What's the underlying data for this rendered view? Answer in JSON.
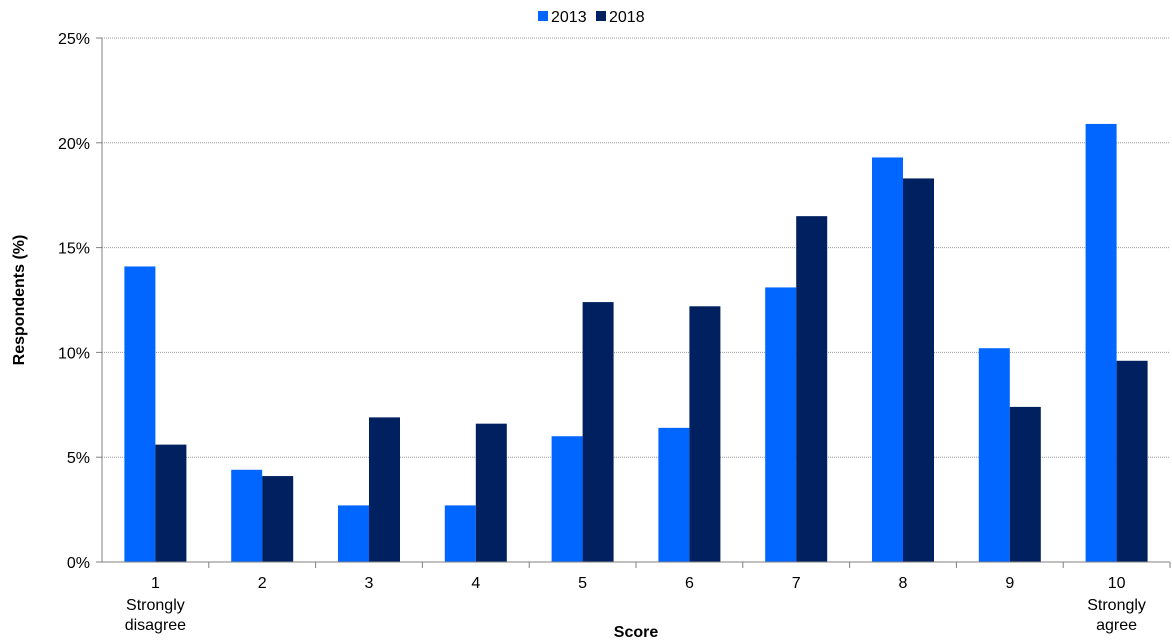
{
  "chart_data": {
    "type": "bar",
    "title": "",
    "xlabel": "Score",
    "ylabel": "Respondents (%)",
    "ylim": [
      0,
      25
    ],
    "yticks": [
      "0%",
      "5%",
      "10%",
      "15%",
      "20%",
      "25%"
    ],
    "ytick_values": [
      0,
      5,
      10,
      15,
      20,
      25
    ],
    "grid": true,
    "legend_position": "top-center",
    "categories": [
      "1",
      "2",
      "3",
      "4",
      "5",
      "6",
      "7",
      "8",
      "9",
      "10"
    ],
    "category_sublabels": [
      "Strongly disagree",
      "",
      "",
      "",
      "",
      "",
      "",
      "",
      "",
      "Strongly agree"
    ],
    "series": [
      {
        "name": "2013",
        "color": "#0066ff",
        "values": [
          14.1,
          4.4,
          2.7,
          2.7,
          6.0,
          6.4,
          13.1,
          19.3,
          10.2,
          20.9
        ]
      },
      {
        "name": "2018",
        "color": "#002060",
        "values": [
          5.6,
          4.1,
          6.9,
          6.6,
          12.4,
          12.2,
          16.5,
          18.3,
          7.4,
          9.6
        ]
      }
    ]
  }
}
